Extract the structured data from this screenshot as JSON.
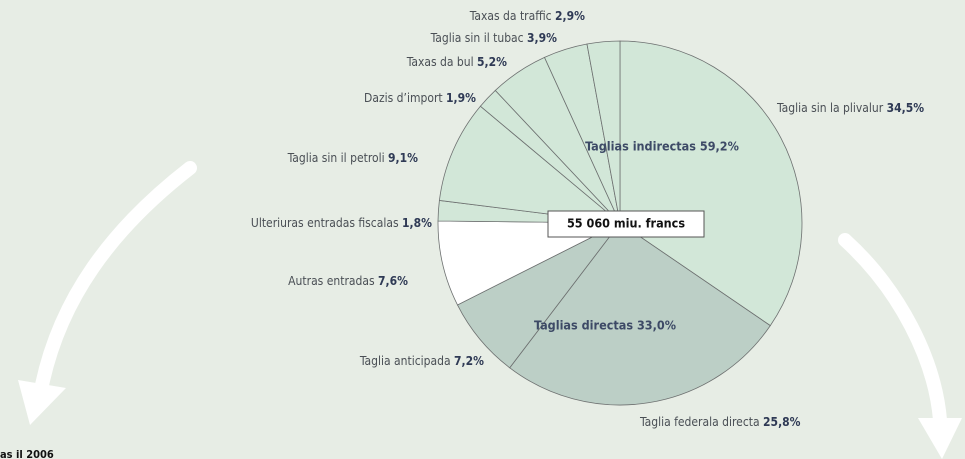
{
  "chart_data": {
    "type": "pie",
    "categories": [
      "Taglia sin la plivalur",
      "Taglia federala directa",
      "Taglia anticipada",
      "Autras entradas",
      "Ulteriuras entradas fiscalas",
      "Taglia sin il petroli",
      "Dazis d’import",
      "Taxas da bul",
      "Taglia sin il tubac",
      "Taxas da traffic"
    ],
    "values": [
      34.5,
      25.8,
      7.2,
      7.6,
      1.8,
      9.1,
      1.9,
      5.2,
      3.9,
      2.9
    ],
    "value_labels": [
      "34,5%",
      "25,8%",
      "7,2%",
      "7,6%",
      "1,8%",
      "9,1%",
      "1,9%",
      "5,2%",
      "3,9%",
      "2,9%"
    ],
    "colors": [
      "#d2e7d8",
      "#bccfc6",
      "#bccfc6",
      "#ffffff",
      "#d2e7d8",
      "#d2e7d8",
      "#d2e7d8",
      "#d2e7d8",
      "#d2e7d8",
      "#d2e7d8"
    ],
    "annotations": [
      "Taglias indirectas 59,2%",
      "Taglias directas 33,0%"
    ],
    "total_label": "55 060 miu. francs",
    "footer": "as il 2006"
  }
}
